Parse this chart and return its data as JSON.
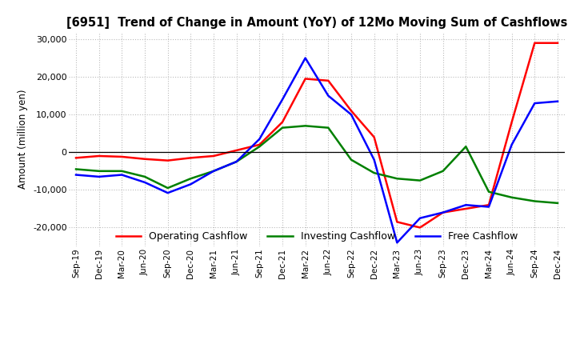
{
  "title": "[6951]  Trend of Change in Amount (YoY) of 12Mo Moving Sum of Cashflows",
  "ylabel": "Amount (million yen)",
  "ylim": [
    -25000,
    32000
  ],
  "yticks": [
    -20000,
    -10000,
    0,
    10000,
    20000,
    30000
  ],
  "x_labels": [
    "Sep-19",
    "Dec-19",
    "Mar-20",
    "Jun-20",
    "Sep-20",
    "Dec-20",
    "Mar-21",
    "Jun-21",
    "Sep-21",
    "Dec-21",
    "Mar-22",
    "Jun-22",
    "Sep-22",
    "Dec-22",
    "Mar-23",
    "Jun-23",
    "Sep-23",
    "Dec-23",
    "Mar-24",
    "Jun-24",
    "Sep-24",
    "Dec-24"
  ],
  "operating": [
    -1500,
    -1000,
    -1200,
    -1800,
    -2200,
    -1500,
    -1000,
    500,
    2000,
    8000,
    19500,
    19000,
    11000,
    4000,
    -18500,
    -20000,
    -16000,
    -15000,
    -14000,
    8000,
    29000,
    29000
  ],
  "investing": [
    -4500,
    -5000,
    -5000,
    -6500,
    -9500,
    -7000,
    -5000,
    -2500,
    1500,
    6500,
    7000,
    6500,
    -2000,
    -5500,
    -7000,
    -7500,
    -5000,
    1500,
    -10500,
    -12000,
    -13000,
    -13500
  ],
  "free": [
    -6000,
    -6500,
    -6000,
    -8000,
    -10800,
    -8500,
    -5000,
    -2500,
    3500,
    14000,
    25000,
    15000,
    10000,
    -2000,
    -24000,
    -17500,
    -16000,
    -14000,
    -14500,
    2000,
    13000,
    13500
  ],
  "colors": {
    "operating": "#ff0000",
    "investing": "#008000",
    "free": "#0000ff"
  },
  "legend_labels": [
    "Operating Cashflow",
    "Investing Cashflow",
    "Free Cashflow"
  ],
  "background_color": "#ffffff",
  "grid_color": "#bbbbbb"
}
